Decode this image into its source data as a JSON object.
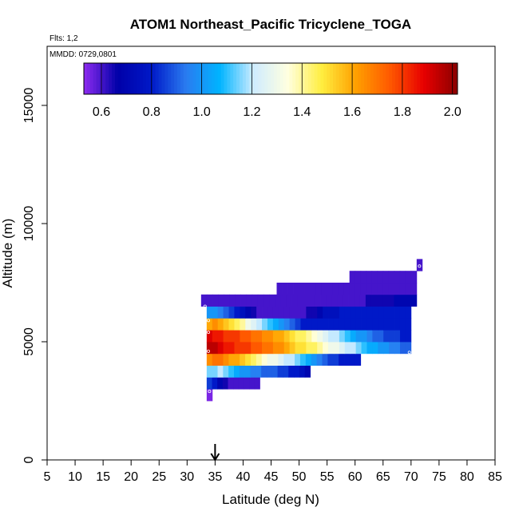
{
  "chart_data": {
    "type": "heatmap",
    "title": "ATOM1 Northeast_Pacific Tricyclene_TOGA",
    "flights_label": "Flts: 1,2",
    "mmdd_label": "MMDD: 0729,0801",
    "xlabel": "Latitude (deg N)",
    "ylabel": "Altitude (m)",
    "xlim": [
      5,
      85
    ],
    "ylim": [
      0,
      17500
    ],
    "x_ticks": [
      "5",
      "10",
      "15",
      "20",
      "25",
      "30",
      "35",
      "40",
      "45",
      "50",
      "55",
      "60",
      "65",
      "70",
      "75",
      "80",
      "85"
    ],
    "y_ticks": [
      "0",
      "5000",
      "10000",
      "15000"
    ],
    "colorbar": {
      "range": [
        0.53,
        2.02
      ],
      "ticks": [
        "0.6",
        "0.8",
        "1.0",
        "1.2",
        "1.4",
        "1.6",
        "1.8",
        "2.0"
      ],
      "colors": [
        "#8f2cf0",
        "#0000a8",
        "#0019c8",
        "#2a7bf0",
        "#00b4ff",
        "#cfecff",
        "#ffffe0",
        "#ffee40",
        "#ffa000",
        "#ff5a00",
        "#e80000",
        "#8a0000"
      ]
    },
    "arrow_latitude": 35,
    "altitude_bin_m": 500,
    "rows": [
      {
        "alt": 2750,
        "lat_start": 33.5,
        "lat_end": 34.5,
        "values": [
          0.55
        ]
      },
      {
        "alt": 3250,
        "lat_start": 33.5,
        "lat_end": 43,
        "values": [
          0.85,
          0.8,
          0.7,
          0.65,
          0.6,
          0.6,
          0.6,
          0.6,
          0.6,
          0.6
        ]
      },
      {
        "alt": 3750,
        "lat_start": 33.5,
        "lat_end": 52,
        "values": [
          1.15,
          1.15,
          1.2,
          1.15,
          1.1,
          1.05,
          1.0,
          1.0,
          0.95,
          0.95,
          0.9,
          0.9,
          0.9,
          0.85,
          0.85,
          0.8,
          0.8,
          0.75,
          0.7
        ]
      },
      {
        "alt": 4250,
        "lat_start": 33.5,
        "lat_end": 61,
        "values": [
          1.65,
          1.7,
          1.7,
          1.65,
          1.6,
          1.6,
          1.55,
          1.5,
          1.45,
          1.4,
          1.35,
          1.3,
          1.3,
          1.25,
          1.2,
          1.2,
          1.15,
          1.1,
          1.05,
          1.0,
          0.95,
          0.9,
          0.85,
          0.85,
          0.8,
          0.8,
          0.8,
          0.8
        ]
      },
      {
        "alt": 4750,
        "lat_start": 33.5,
        "lat_end": 70,
        "values": [
          1.95,
          1.95,
          1.9,
          1.85,
          1.85,
          1.8,
          1.8,
          1.8,
          1.75,
          1.75,
          1.7,
          1.7,
          1.65,
          1.65,
          1.6,
          1.55,
          1.5,
          1.5,
          1.45,
          1.45,
          1.4,
          1.35,
          1.3,
          1.3,
          1.25,
          1.2,
          1.2,
          1.15,
          1.1,
          1.05,
          1.05,
          1.0,
          1.0,
          0.95,
          0.95,
          0.9,
          0.9
        ]
      },
      {
        "alt": 5250,
        "lat_start": 33.5,
        "lat_end": 70,
        "values": [
          1.9,
          1.85,
          1.85,
          1.8,
          1.8,
          1.8,
          1.75,
          1.75,
          1.7,
          1.7,
          1.65,
          1.65,
          1.6,
          1.6,
          1.55,
          1.5,
          1.45,
          1.45,
          1.4,
          1.35,
          1.3,
          1.25,
          1.2,
          1.2,
          1.15,
          1.1,
          1.05,
          1.0,
          1.0,
          0.95,
          0.9,
          0.9,
          0.85,
          0.85,
          0.85,
          0.8,
          0.8
        ]
      },
      {
        "alt": 5750,
        "lat_start": 33.5,
        "lat_end": 70,
        "values": [
          1.6,
          1.65,
          1.6,
          1.55,
          1.5,
          1.45,
          1.4,
          1.3,
          1.25,
          1.2,
          1.15,
          1.1,
          1.05,
          1.0,
          0.95,
          0.9,
          0.85,
          0.8,
          0.8,
          0.8,
          0.8,
          0.8,
          0.8,
          0.8,
          0.8,
          0.8,
          0.8,
          0.8,
          0.8,
          0.8,
          0.8,
          0.8,
          0.8,
          0.8,
          0.8,
          0.8,
          0.8
        ]
      },
      {
        "alt": 6250,
        "lat_start": 33.5,
        "lat_end": 70,
        "values": [
          1.0,
          1.0,
          0.95,
          0.9,
          0.85,
          0.8,
          0.75,
          0.7,
          0.65,
          0.6,
          0.6,
          0.6,
          0.6,
          0.6,
          0.6,
          0.6,
          0.6,
          0.6,
          0.65,
          0.65,
          0.7,
          0.75,
          0.75,
          0.75,
          0.8,
          0.8,
          0.8,
          0.8,
          0.8,
          0.8,
          0.8,
          0.8,
          0.8,
          0.8,
          0.8,
          0.8,
          0.8
        ]
      },
      {
        "alt": 6750,
        "lat_start": 32.5,
        "lat_end": 71,
        "values": [
          0.6,
          0.6,
          0.6,
          0.6,
          0.6,
          0.6,
          0.6,
          0.6,
          0.6,
          0.6,
          0.6,
          0.6,
          0.6,
          0.6,
          0.6,
          0.6,
          0.6,
          0.6,
          0.6,
          0.6,
          0.6,
          0.6,
          0.6,
          0.6,
          0.6,
          0.6,
          0.6,
          0.6,
          0.6,
          0.65,
          0.65,
          0.65,
          0.65,
          0.65,
          0.7,
          0.7,
          0.7,
          0.7
        ]
      },
      {
        "alt": 7250,
        "lat_start": 46,
        "lat_end": 71,
        "values": [
          0.6,
          0.6,
          0.6,
          0.6,
          0.6,
          0.6,
          0.6,
          0.6,
          0.6,
          0.6,
          0.6,
          0.6,
          0.6,
          0.6,
          0.6,
          0.6,
          0.6,
          0.6,
          0.6,
          0.6,
          0.6,
          0.6,
          0.6,
          0.6,
          0.6
        ]
      },
      {
        "alt": 7750,
        "lat_start": 59,
        "lat_end": 71,
        "values": [
          0.6,
          0.6,
          0.6,
          0.6,
          0.6,
          0.6,
          0.6,
          0.6,
          0.6,
          0.6,
          0.6,
          0.6
        ]
      },
      {
        "alt": 8250,
        "lat_start": 71,
        "lat_end": 72,
        "values": [
          0.6
        ]
      }
    ],
    "markers": [
      {
        "lat": 34,
        "alt": 2900
      },
      {
        "lat": 33.8,
        "alt": 4600
      },
      {
        "lat": 33.8,
        "alt": 5400
      },
      {
        "lat": 33.8,
        "alt": 5900
      },
      {
        "lat": 33.2,
        "alt": 6500
      },
      {
        "lat": 69.7,
        "alt": 4550
      },
      {
        "lat": 71.5,
        "alt": 8200
      }
    ]
  }
}
